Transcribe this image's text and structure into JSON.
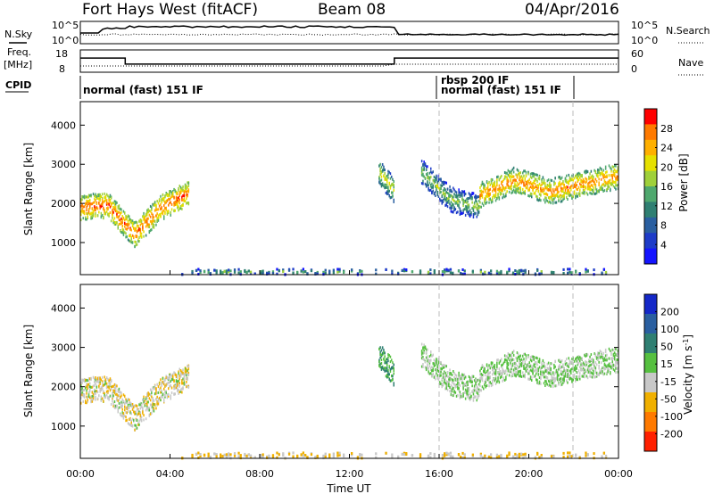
{
  "header": {
    "station": "Fort Hays West (fitACF)",
    "beam": "Beam 08",
    "date": "04/Apr/2016"
  },
  "summary": {
    "nsky_label": "N.Sky",
    "nsearch_label": "N.Search",
    "nsky_ticks": [
      "10^5",
      "10^0"
    ],
    "nsearch_ticks": [
      "10^5",
      "10^0"
    ],
    "freq_label_1": "Freq.",
    "freq_label_2": "[MHz]",
    "freq_ticks": [
      "18",
      "8"
    ],
    "nave_label": "Nave",
    "nave_ticks": [
      "60",
      "0"
    ],
    "cpid_label": "CPID",
    "cpid_segments": [
      {
        "label": "normal (fast) 151 IF",
        "start": 0.0,
        "end": 16.0
      },
      {
        "label": "rbsp 200 IF",
        "start": 16.0,
        "end": 16.0
      },
      {
        "label": "normal (fast) 151 IF",
        "start": 16.0,
        "end": 21.9
      }
    ],
    "freq_mhz": [
      {
        "start": 0.0,
        "end": 2.0,
        "value": 15
      },
      {
        "start": 2.0,
        "end": 14.0,
        "value": 11
      },
      {
        "start": 14.0,
        "end": 24.0,
        "value": 15
      }
    ]
  },
  "panels": {
    "ylabel": "Slant Range [km]",
    "yticks": [
      "4000",
      "3000",
      "2000",
      "1000"
    ],
    "xticks": [
      "00:00",
      "04:00",
      "08:00",
      "12:00",
      "16:00",
      "20:00",
      "00:00"
    ],
    "xlabel": "Time UT"
  },
  "power_scale": {
    "label": "Power [dB]",
    "ticks": [
      "28",
      "24",
      "20",
      "16",
      "12",
      "8",
      "4"
    ],
    "colors": [
      "#ff0000",
      "#ff7a00",
      "#ffb000",
      "#e6e000",
      "#9fd03a",
      "#4fa86e",
      "#2f7f72",
      "#2a5fa0",
      "#1e3cc8",
      "#1414ff"
    ]
  },
  "velocity_scale": {
    "label": "Velocity [m s^-1]",
    "ticks": [
      "200",
      "100",
      "50",
      "15",
      "-15",
      "-50",
      "-100",
      "-200"
    ],
    "colors": [
      "#1428c8",
      "#2a5fa0",
      "#2f7f72",
      "#56c040",
      "#c8c8c8",
      "#f0b000",
      "#ff7a00",
      "#ff2000"
    ]
  },
  "chart_data": [
    {
      "type": "heatmap",
      "title": "Power",
      "quantity": "Power [dB]",
      "xlabel": "Time UT",
      "ylabel": "Slant Range [km]",
      "xlim_hours": [
        0,
        24
      ],
      "ylim_km": [
        180,
        4600
      ],
      "clim_db": [
        0,
        32
      ],
      "features": [
        {
          "name": "early-backscatter",
          "t_start": 0.0,
          "t_end": 4.8,
          "range_km_center": [
            1900,
            1950,
            1200,
            1900,
            2250
          ],
          "power_db": 22
        },
        {
          "name": "patch-13.5h",
          "t_start": 13.3,
          "t_end": 14.0,
          "range_km_center": [
            2800,
            2300
          ],
          "power_db": 14
        },
        {
          "name": "patch-15.5h",
          "t_start": 15.2,
          "t_end": 17.8,
          "range_km_center": [
            2800,
            2100,
            1900
          ],
          "power_db": 10
        },
        {
          "name": "late-band",
          "t_start": 17.8,
          "t_end": 24.0,
          "range_km_center": [
            2200,
            2600,
            2300,
            2500,
            2700
          ],
          "power_db": 20
        },
        {
          "name": "ground-near-range",
          "t_start": 4.5,
          "t_end": 24.0,
          "range_km_center": [
            250
          ],
          "power_db": 8
        }
      ]
    },
    {
      "type": "heatmap",
      "title": "Velocity",
      "quantity": "Velocity [m s^-1]",
      "xlabel": "Time UT",
      "ylabel": "Slant Range [km]",
      "xlim_hours": [
        0,
        24
      ],
      "ylim_km": [
        180,
        4600
      ],
      "clim_ms": [
        -250,
        250
      ],
      "features": [
        {
          "name": "early-backscatter",
          "t_start": 0.0,
          "t_end": 4.8,
          "velocity_ms": -20
        },
        {
          "name": "patch-13.5h",
          "t_start": 13.3,
          "t_end": 14.0,
          "velocity_ms": 30
        },
        {
          "name": "patch-15.5h",
          "t_start": 15.2,
          "t_end": 17.8,
          "velocity_ms": 0
        },
        {
          "name": "late-band",
          "t_start": 17.8,
          "t_end": 24.0,
          "velocity_ms": 0
        },
        {
          "name": "ground-near-range",
          "t_start": 4.5,
          "t_end": 24.0,
          "velocity_ms": -30
        }
      ]
    }
  ]
}
